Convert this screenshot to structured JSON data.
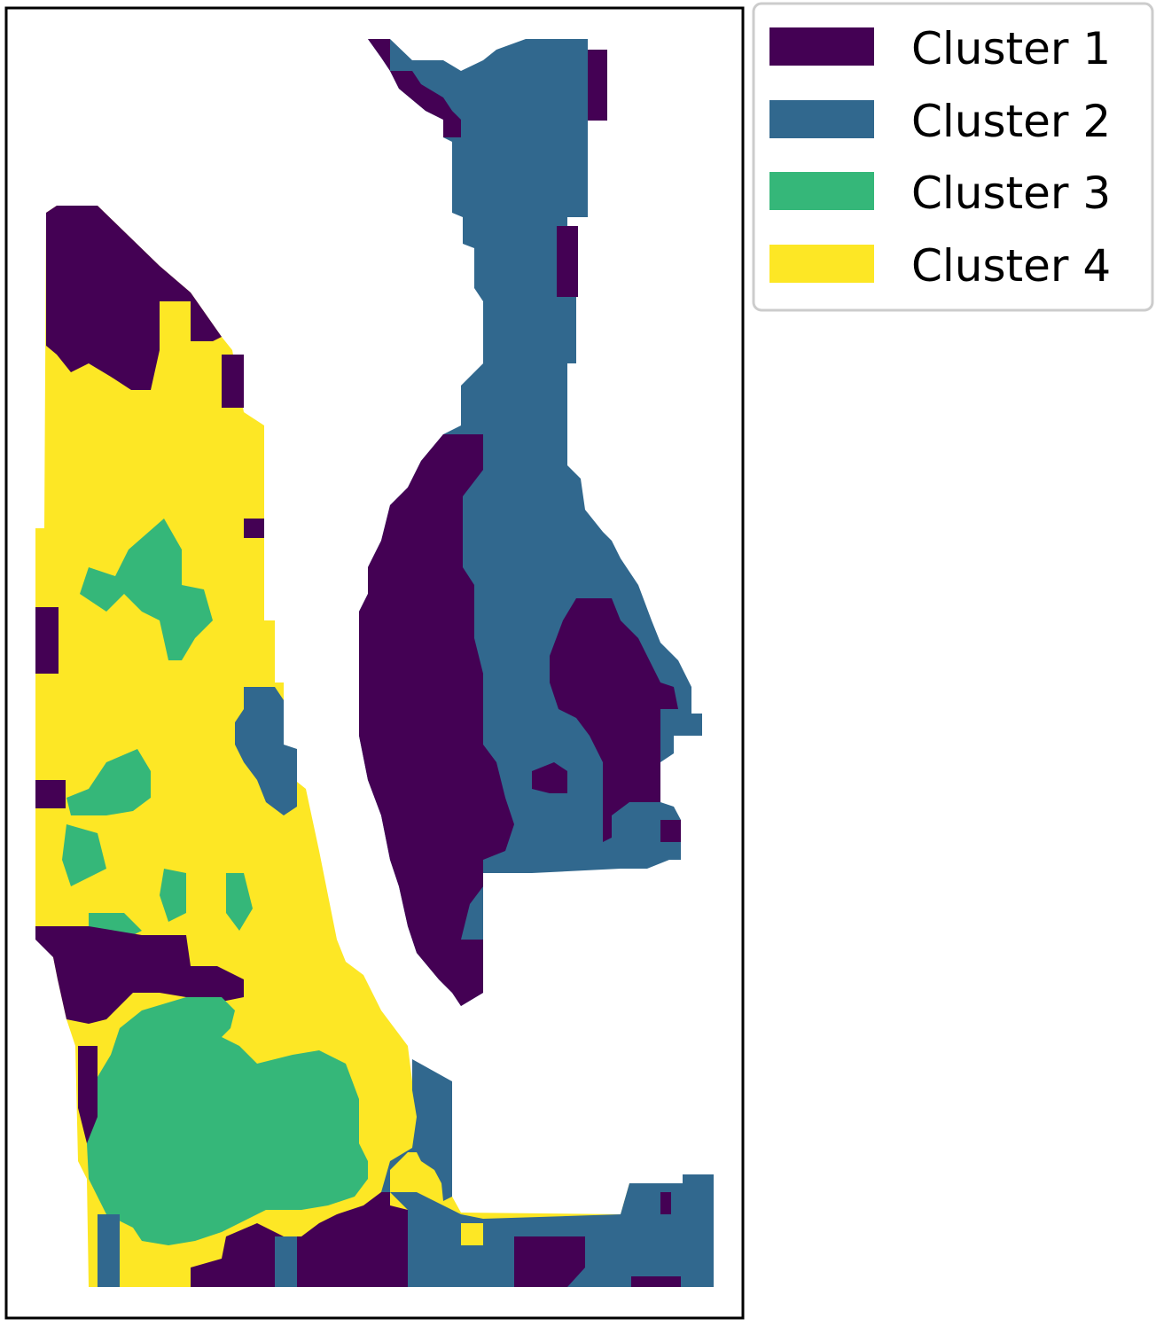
{
  "chart_data": {
    "type": "heatmap",
    "title": "",
    "xlabel": "",
    "ylabel": "",
    "grid": false,
    "axis_ticks": false,
    "legend": {
      "placement": "outside-top-right",
      "entries": [
        {
          "label": "Cluster 1",
          "color": "#440154"
        },
        {
          "label": "Cluster 2",
          "color": "#31688e"
        },
        {
          "label": "Cluster 3",
          "color": "#35b779"
        },
        {
          "label": "Cluster 4",
          "color": "#fde725"
        }
      ]
    }
  }
}
